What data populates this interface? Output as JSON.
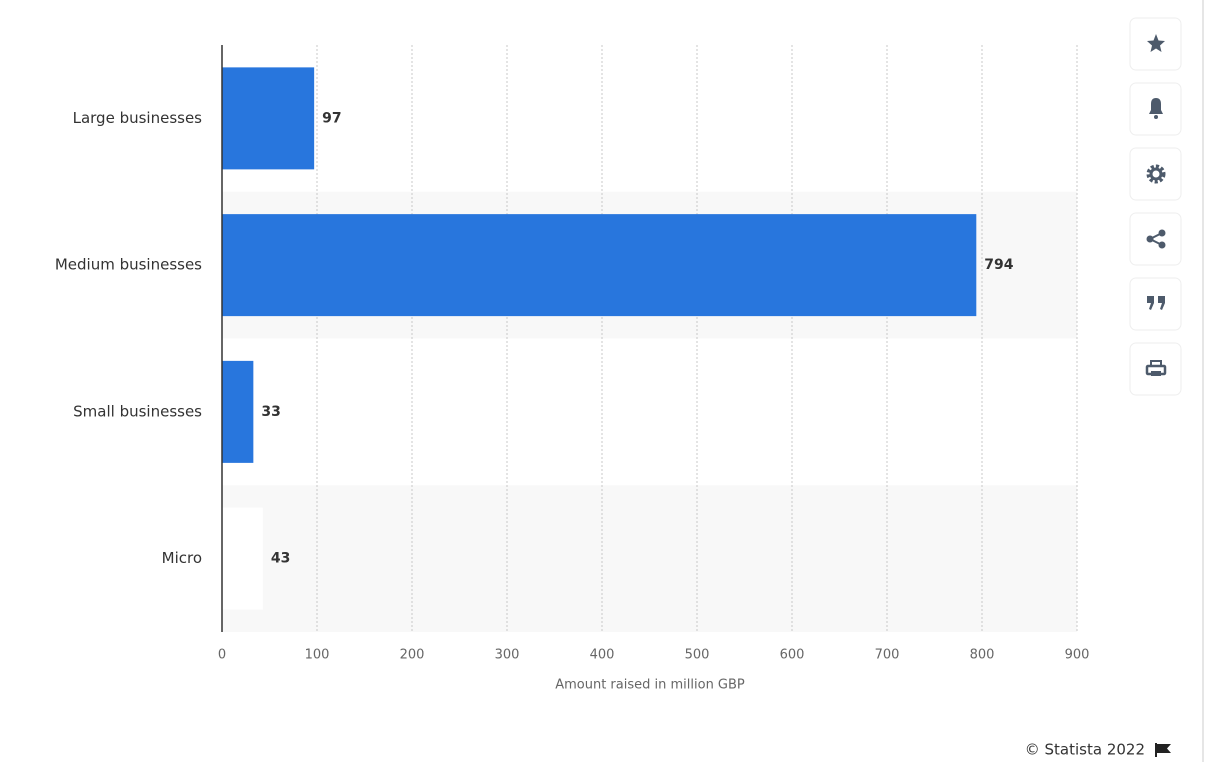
{
  "chart_data": {
    "type": "bar",
    "orientation": "horizontal",
    "categories": [
      "Large businesses",
      "Medium businesses",
      "Small businesses",
      "Micro"
    ],
    "values": [
      97,
      794,
      33,
      43
    ],
    "colors": [
      "#2876dd",
      "#2876dd",
      "#2876dd",
      "#ffffff"
    ],
    "x_label": "Amount raised in million GBP",
    "xlim": [
      0,
      900
    ],
    "xticks": [
      0,
      100,
      200,
      300,
      400,
      500,
      600,
      700,
      800,
      900
    ],
    "grid": true,
    "credit": "© Statista 2022"
  }
}
